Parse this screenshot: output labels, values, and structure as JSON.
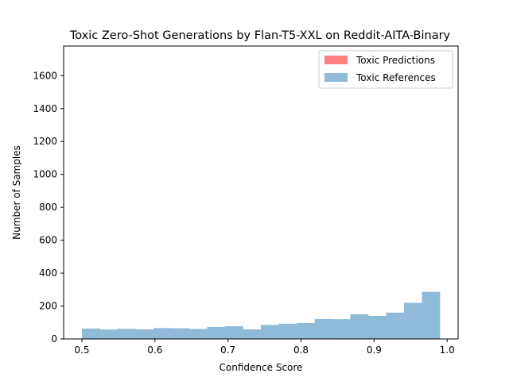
{
  "chart_data": {
    "type": "histogram",
    "title": "Toxic Zero-Shot Generations by Flan-T5-XXL on Reddit-AITA-Binary",
    "xlabel": "Confidence Score",
    "ylabel": "Number of Samples",
    "xlim": [
      0.475,
      1.015
    ],
    "ylim": [
      0,
      1780
    ],
    "xticks": [
      0.5,
      0.6,
      0.7,
      0.8,
      0.9,
      1.0
    ],
    "xtick_labels": [
      "0.5",
      "0.6",
      "0.7",
      "0.8",
      "0.9",
      "1.0"
    ],
    "yticks": [
      0,
      200,
      400,
      600,
      800,
      1000,
      1200,
      1400,
      1600
    ],
    "ytick_labels": [
      "0",
      "200",
      "400",
      "600",
      "800",
      "1000",
      "1200",
      "1400",
      "1600"
    ],
    "legend_position": "top-right",
    "bins": [
      0.5,
      0.5245,
      0.549,
      0.5735,
      0.598,
      0.6225,
      0.647,
      0.6715,
      0.696,
      0.7205,
      0.745,
      0.7695,
      0.794,
      0.8185,
      0.843,
      0.8675,
      0.892,
      0.9165,
      0.941,
      0.9655,
      0.99
    ],
    "series": [
      {
        "name": "Toxic Predictions",
        "color": "#ff8080",
        "values": [
          0,
          0,
          0,
          0,
          0,
          0,
          0,
          0,
          0,
          0,
          0,
          0,
          0,
          0,
          0,
          0,
          0,
          0,
          0,
          0
        ]
      },
      {
        "name": "Toxic References",
        "color": "#8fbbd9",
        "values": [
          63,
          57,
          62,
          58,
          66,
          65,
          61,
          73,
          77,
          58,
          85,
          92,
          97,
          121,
          120,
          150,
          140,
          160,
          220,
          286
        ]
      }
    ]
  }
}
